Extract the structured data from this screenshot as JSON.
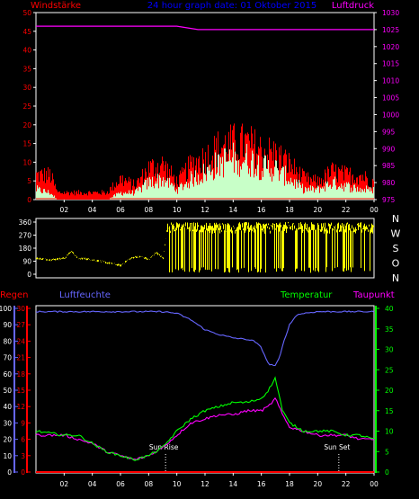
{
  "chart_data": [
    {
      "type": "line",
      "title": "24 hour graph date: 01 Oktober 2015",
      "ylabel_left": "Windstärke",
      "ylabel_right": "Luftdruck",
      "x_ticks": [
        "02",
        "04",
        "06",
        "08",
        "10",
        "12",
        "14",
        "16",
        "18",
        "20",
        "22",
        "00"
      ],
      "y_left_ticks": [
        "0",
        "5",
        "10",
        "15",
        "20",
        "25",
        "30",
        "35",
        "40",
        "45",
        "50"
      ],
      "y_right_ticks": [
        "975",
        "980",
        "985",
        "990",
        "995",
        "1000",
        "1005",
        "1010",
        "1015",
        "1020",
        "1025",
        "1030"
      ],
      "ylim_left": [
        0,
        50
      ],
      "ylim_right": [
        975,
        1030
      ],
      "colors": {
        "gust": "#ff0000",
        "wind": "#c8ffc8",
        "pressure": "#ff00ff",
        "title": "#0000ff",
        "label_left": "#ff0000",
        "label_right": "#ff00ff"
      },
      "pressure": {
        "x": [
          0,
          10,
          11.5,
          24
        ],
        "y": [
          1026,
          1026,
          1025,
          1025
        ]
      },
      "gust_profile": {
        "x": [
          0,
          1,
          1.5,
          5,
          6,
          7,
          8,
          9,
          10,
          11,
          12,
          13,
          14,
          15,
          16,
          17,
          18,
          19,
          20,
          21,
          22,
          23,
          24
        ],
        "y": [
          7,
          7,
          2,
          2,
          6,
          4,
          9,
          10,
          5,
          10,
          12,
          15,
          16,
          16,
          14,
          13,
          10,
          6,
          5,
          8,
          7,
          7,
          5
        ]
      },
      "wind_profile": {
        "x": [
          0,
          1,
          1.5,
          5,
          6,
          7,
          8,
          9,
          10,
          11,
          12,
          13,
          14,
          15,
          16,
          17,
          18,
          19,
          20,
          21,
          22,
          23,
          24
        ],
        "y": [
          3,
          2,
          0,
          0,
          2,
          2,
          5,
          6,
          3,
          6,
          8,
          11,
          12,
          12,
          10,
          9,
          6,
          3,
          3,
          5,
          4,
          3,
          3
        ]
      }
    },
    {
      "type": "line",
      "y_left_ticks": [
        "0",
        "90",
        "180",
        "270",
        "360"
      ],
      "y_right_labels": [
        "N",
        "W",
        "S",
        "O",
        "N"
      ],
      "ylim": [
        0,
        360
      ],
      "colors": {
        "direction": "#ffff00"
      },
      "direction_profile": {
        "x": [
          0,
          1,
          2,
          2.5,
          3,
          3.2,
          4,
          5,
          6,
          6.5,
          7,
          7.5,
          8,
          8.5,
          9,
          9.3,
          24
        ],
        "y": [
          110,
          100,
          110,
          160,
          100,
          110,
          100,
          80,
          60,
          100,
          120,
          120,
          100,
          150,
          110,
          330,
          330
        ]
      }
    },
    {
      "type": "line",
      "labels": {
        "regen": "Regen",
        "luftfeuchte": "Luftfeuchte",
        "temperatur": "Temperatur",
        "taupunkt": "Taupunkt",
        "sunrise": "Sun Rise",
        "sunset": "Sun Set"
      },
      "y_left_outer_ticks": [
        "0",
        "10",
        "20",
        "30",
        "40",
        "50",
        "60",
        "70",
        "80",
        "90",
        "100"
      ],
      "y_left_inner_ticks": [
        "0",
        "3",
        "6",
        "9",
        "12",
        "15",
        "18",
        "21",
        "24",
        "27",
        "30"
      ],
      "y_right_ticks": [
        "0",
        "5",
        "10",
        "15",
        "20",
        "25",
        "30",
        "35",
        "40"
      ],
      "ylim_humidity": [
        0,
        100
      ],
      "ylim_rain": [
        0,
        30
      ],
      "ylim_temperature": [
        0,
        40
      ],
      "sunrise_hour": 9.2,
      "sunset_hour": 21.5,
      "colors": {
        "regen": "#ff0000",
        "luftfeuchte": "#6666ff",
        "temperatur": "#00ff00",
        "taupunkt": "#ff00ff",
        "rain_line": "#ff0000"
      },
      "humidity": {
        "x": [
          0,
          8,
          9,
          10,
          11,
          12,
          13,
          14,
          15,
          15.5,
          16,
          16.5,
          17,
          17.3,
          17.6,
          18,
          18.5,
          19,
          20,
          21,
          22,
          23,
          24
        ],
        "y": [
          98,
          98,
          98,
          97,
          93,
          87,
          84,
          82,
          81,
          80,
          76,
          66,
          65,
          70,
          80,
          90,
          96,
          97,
          98,
          98,
          98,
          98,
          98
        ]
      },
      "temperature": {
        "x": [
          0,
          2,
          3,
          4,
          5,
          6,
          7,
          8,
          9,
          10,
          11,
          12,
          13,
          14,
          15,
          16,
          16.5,
          17,
          17.5,
          18,
          19,
          20,
          21,
          22,
          23,
          24
        ],
        "y": [
          10,
          9,
          9,
          7,
          5,
          4,
          3,
          4,
          6,
          10,
          13,
          15,
          16,
          17,
          17,
          18,
          20,
          23,
          15,
          12,
          10,
          10,
          10,
          9,
          9,
          8
        ]
      },
      "dewpoint": {
        "x": [
          0,
          2,
          3,
          4,
          5,
          6,
          7,
          8,
          9,
          10,
          11,
          12,
          13,
          14,
          15,
          16,
          16.5,
          17,
          17.5,
          18,
          19,
          20,
          21,
          22,
          23,
          24
        ],
        "y": [
          9,
          9,
          8,
          7,
          5,
          4,
          3,
          4,
          6,
          9,
          12,
          13,
          14,
          14,
          15,
          15,
          16,
          18,
          14,
          11,
          10,
          9,
          9,
          9,
          8,
          8
        ]
      }
    }
  ]
}
